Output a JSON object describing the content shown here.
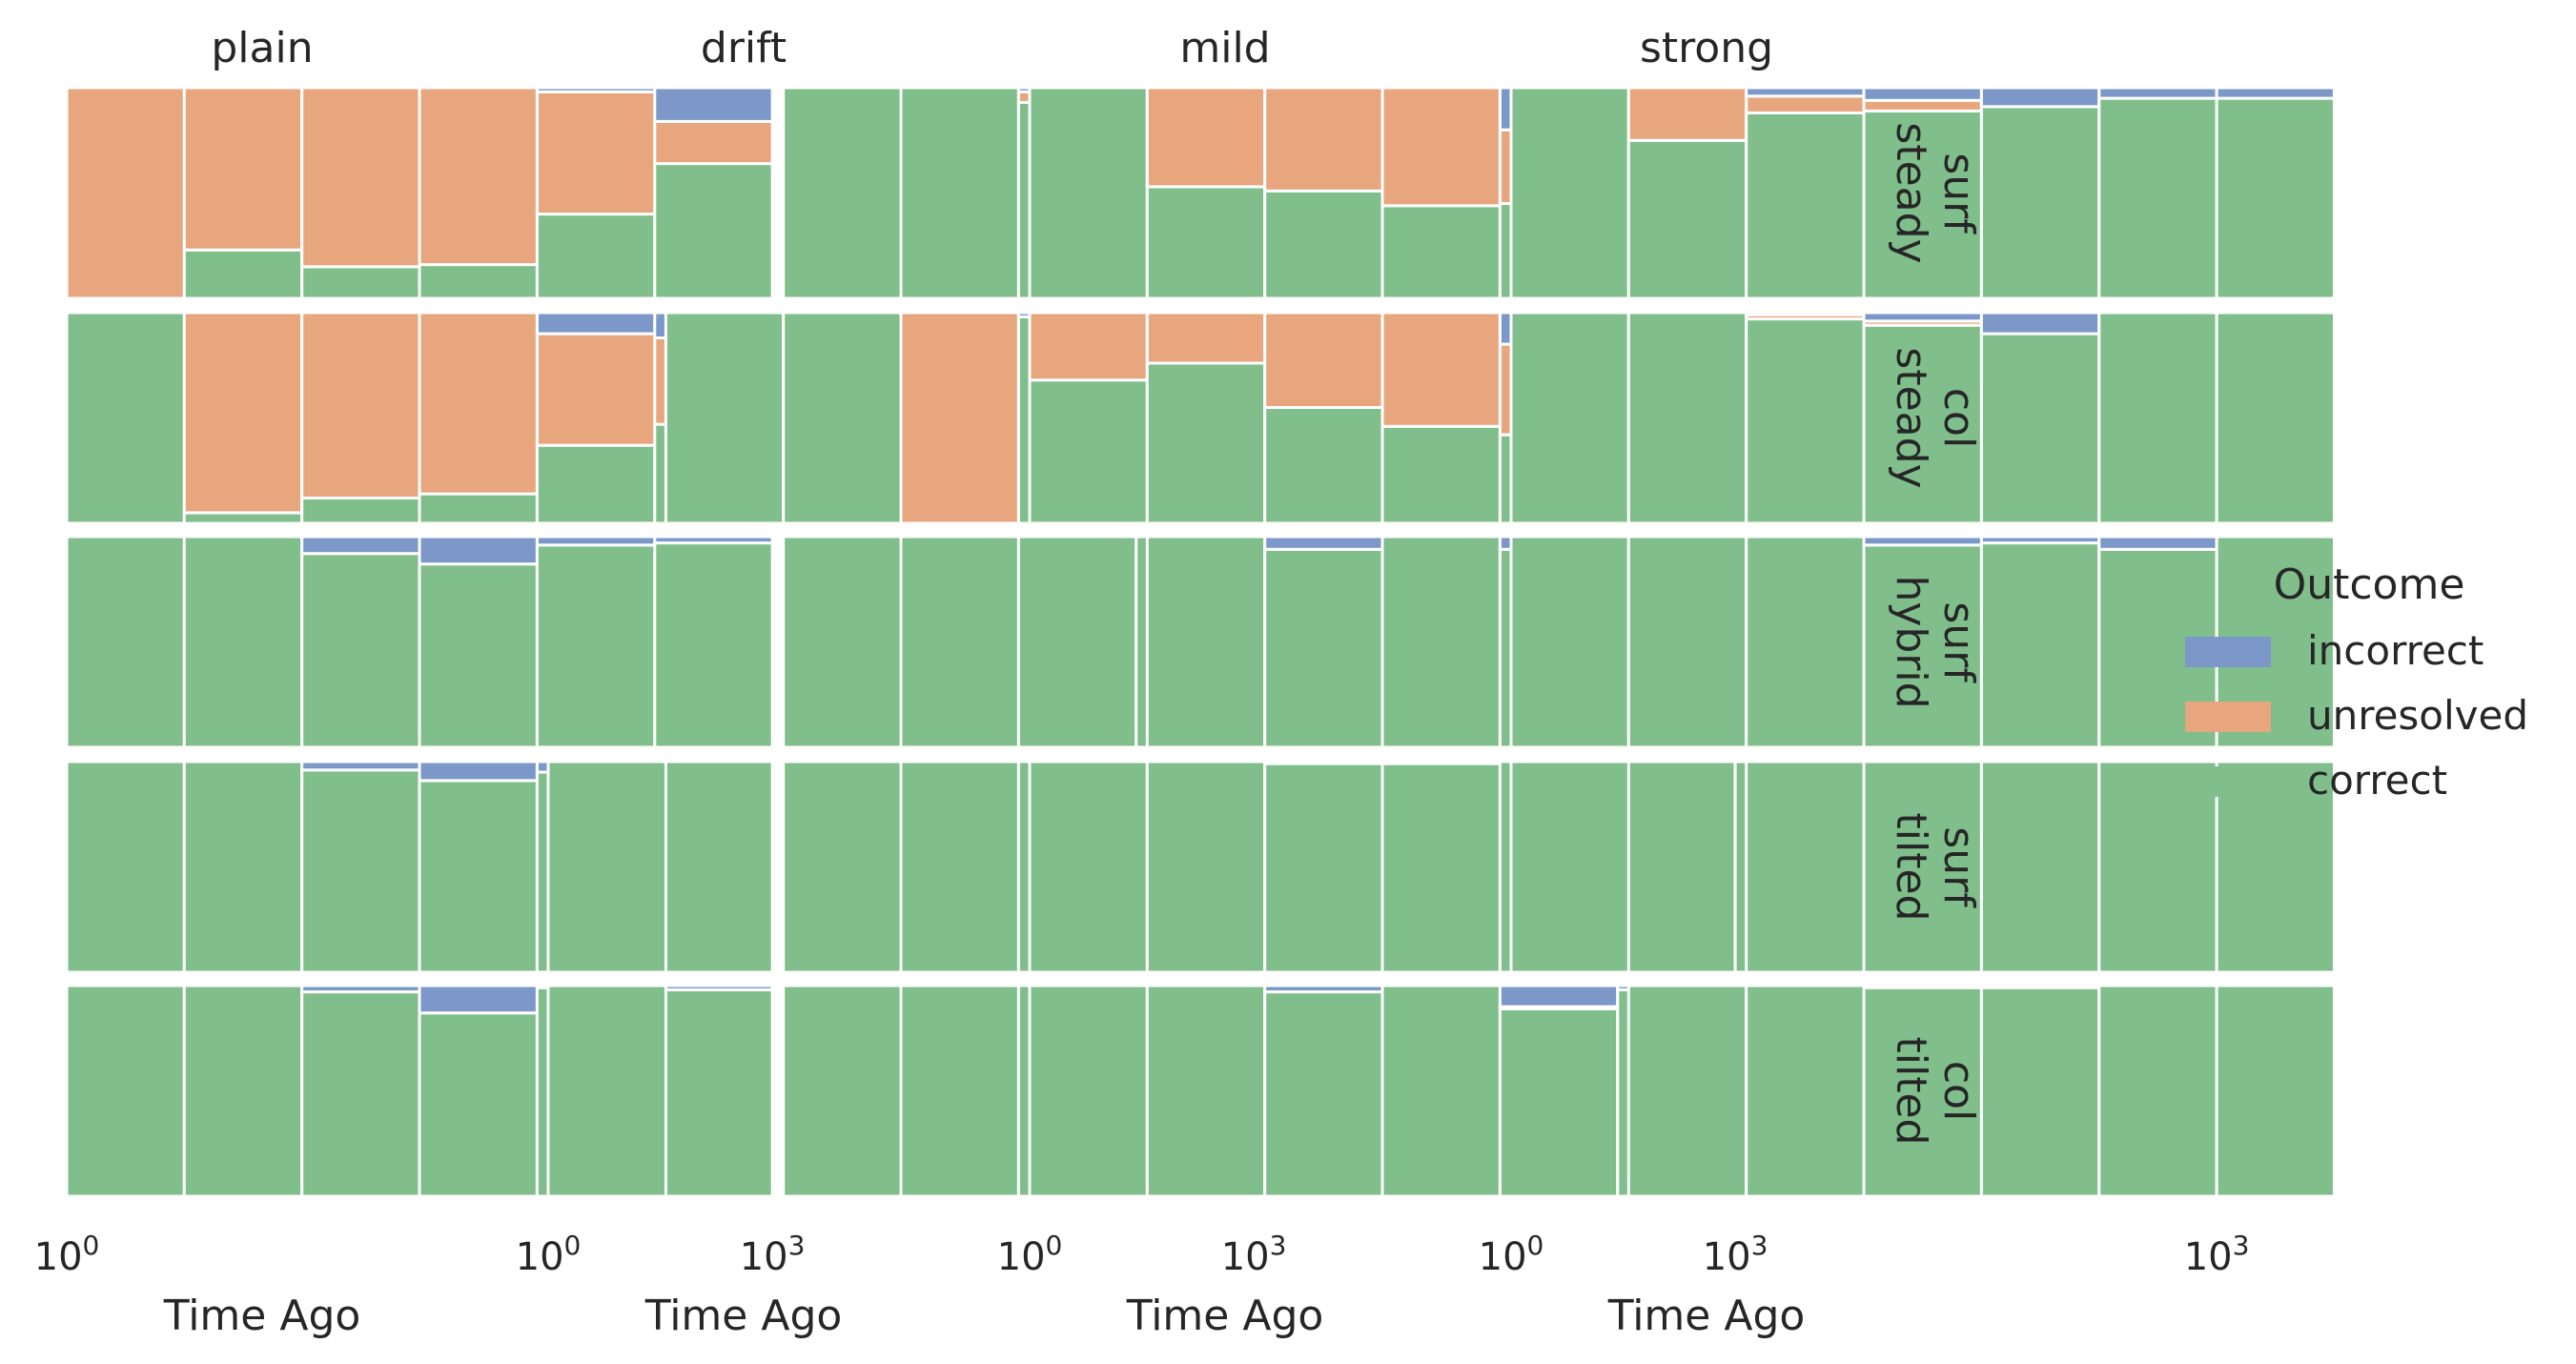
{
  "chart_data": {
    "type": "bar",
    "subtype": "stacked-histogram-facet-grid",
    "x_scale": "log10",
    "x_ticks": [
      {
        "value": 1,
        "label_base": "10",
        "label_exp": "0"
      },
      {
        "value": 1000,
        "label_base": "10",
        "label_exp": "3"
      }
    ],
    "bin_edges_log10": [
      0,
      0.5,
      1,
      1.5,
      2,
      2.5,
      3,
      3.5,
      4
    ],
    "xlabel": "Time Ago",
    "ylim": [
      0,
      1
    ],
    "grid": false,
    "legend": {
      "title": "Outcome",
      "placement": "right",
      "entries": [
        "incorrect",
        "unresolved",
        "correct"
      ]
    },
    "colors": {
      "correct": "#80be8c",
      "unresolved": "#e8a67f",
      "incorrect": "#7b98c9"
    },
    "columns": [
      {
        "title": "plain",
        "xlim_log10": [
          0,
          1
        ]
      },
      {
        "title": "drift",
        "xlim_log10": [
          0,
          4
        ]
      },
      {
        "title": "mild",
        "xlim_log10": [
          0,
          1.5
        ]
      },
      {
        "title": "strong",
        "xlim_log10": [
          0,
          1.5
        ]
      }
    ],
    "rows": [
      {
        "label_top": "surf",
        "label_bottom": "steady"
      },
      {
        "label_top": "col",
        "label_bottom": "steady"
      },
      {
        "label_top": "surf",
        "label_bottom": "hybrid"
      },
      {
        "label_top": "surf",
        "label_bottom": "tilted"
      },
      {
        "label_top": "col",
        "label_bottom": "tilted"
      }
    ],
    "panels": [
      [
        {
          "correct": [
            0,
            0.23,
            0.15,
            0.16,
            0.4,
            0.64
          ],
          "unresolved": [
            1,
            0.77,
            0.85,
            0.84,
            0.58,
            0.2
          ],
          "incorrect": [
            0,
            0,
            0,
            0,
            0.02,
            0.16
          ]
        },
        {
          "correct": [
            1,
            0.05,
            0.12,
            0.14,
            0.37,
            0.47
          ],
          "unresolved": [
            0,
            0.95,
            0.88,
            0.86,
            0.53,
            0.41
          ],
          "incorrect": [
            0,
            0,
            0,
            0,
            0.1,
            0.12
          ]
        },
        {
          "correct": [
            1,
            1,
            0.92,
            0.87,
            0.96,
            0.97
          ],
          "unresolved": [
            0,
            0,
            0,
            0,
            0,
            0
          ],
          "incorrect": [
            0,
            0,
            0.08,
            0.13,
            0.04,
            0.03
          ]
        },
        {
          "correct": [
            1,
            1,
            0.96,
            0.91,
            0.95,
            1
          ],
          "unresolved": [
            0,
            0,
            0,
            0,
            0,
            0
          ],
          "incorrect": [
            0,
            0,
            0.04,
            0.09,
            0.05,
            0
          ]
        },
        {
          "correct": [
            1,
            1,
            0.97,
            0.87,
            0.99,
            0.98
          ],
          "unresolved": [
            0,
            0,
            0,
            0,
            0,
            0
          ],
          "incorrect": [
            0,
            0,
            0.03,
            0.13,
            0.01,
            0.02
          ]
        }
      ],
      [
        {
          "correct": [
            null,
            null,
            1,
            1,
            0.93,
            0.98,
            0.99,
            0.98,
            0.98
          ],
          "unresolved": [
            null,
            null,
            0,
            0,
            0.05,
            0.01,
            0,
            0,
            0
          ],
          "incorrect": [
            null,
            null,
            0,
            0,
            0.02,
            0.01,
            0.01,
            0.02,
            0.02
          ]
        },
        {
          "correct": [
            null,
            1,
            1,
            0,
            0.98,
            0.97,
            0.98,
            1,
            1
          ],
          "unresolved": [
            null,
            0,
            0,
            1,
            0,
            0,
            0,
            0,
            0
          ],
          "incorrect": [
            null,
            0,
            0,
            0,
            0.02,
            0.03,
            0.02,
            0,
            0
          ]
        },
        {
          "correct": [
            null,
            null,
            1,
            1,
            1,
            1,
            1,
            0.99,
            1
          ],
          "unresolved": [
            null,
            null,
            0,
            0,
            0,
            0,
            0,
            0,
            0
          ],
          "incorrect": [
            null,
            null,
            0,
            0,
            0,
            0,
            0,
            0.01,
            0
          ]
        },
        {
          "correct": [
            1,
            null,
            1,
            1,
            1,
            1,
            1,
            0.96,
            0.98
          ],
          "unresolved": [
            0,
            null,
            0,
            0,
            0,
            0,
            0,
            0,
            0
          ],
          "incorrect": [
            0,
            null,
            0,
            0,
            0,
            0,
            0,
            0.04,
            0.02
          ]
        },
        {
          "correct": [
            1,
            null,
            1,
            1,
            1,
            1,
            1,
            0.98,
            0.99
          ],
          "unresolved": [
            0,
            null,
            0,
            0,
            0,
            0,
            0,
            0,
            0
          ],
          "incorrect": [
            0,
            null,
            0,
            0,
            0,
            0,
            0,
            0.02,
            0.01
          ]
        }
      ],
      [
        {
          "correct": [
            1,
            0.53,
            0.51,
            0.44,
            0.45,
            0.51,
            0.93
          ],
          "unresolved": [
            0,
            0.47,
            0.49,
            0.56,
            0.35,
            0.25,
            0.04
          ],
          "incorrect": [
            0,
            0,
            0,
            0,
            0.2,
            0.24,
            0.03
          ]
        },
        {
          "correct": [
            0.68,
            0.76,
            0.55,
            0.46,
            0.42,
            0.66,
            0.97
          ],
          "unresolved": [
            0.32,
            0.24,
            0.45,
            0.54,
            0.43,
            0.19,
            0
          ],
          "incorrect": [
            0,
            0,
            0,
            0,
            0.15,
            0.15,
            0.03
          ]
        },
        {
          "correct": [
            null,
            1,
            0.94,
            1,
            0.94,
            0.97,
            1
          ],
          "unresolved": [
            null,
            0,
            0,
            0,
            0,
            0,
            0
          ],
          "incorrect": [
            null,
            0,
            0.06,
            0,
            0.06,
            0.03,
            0
          ]
        },
        {
          "correct": [
            1,
            1,
            0.99,
            0.99,
            1,
            1,
            1
          ],
          "unresolved": [
            0,
            0,
            0,
            0,
            0,
            0,
            0
          ],
          "incorrect": [
            0,
            0,
            0,
            0,
            0,
            0,
            0
          ]
        },
        {
          "correct": [
            1,
            1,
            0.97,
            1,
            0.89,
            0.98,
            1
          ],
          "unresolved": [
            0,
            0,
            0,
            0,
            0.01,
            0,
            0
          ],
          "incorrect": [
            0,
            0,
            0.03,
            0,
            0.1,
            0.02,
            0
          ]
        }
      ],
      [
        {
          "correct": [
            1,
            0.75,
            0.88,
            0.89,
            0.91,
            0.95,
            0.95
          ],
          "unresolved": [
            0,
            0.25,
            0.08,
            0.05,
            0,
            0,
            0
          ],
          "incorrect": [
            0,
            0,
            0.04,
            0.06,
            0.09,
            0.05,
            0.05
          ]
        },
        {
          "correct": [
            1,
            1,
            0.97,
            0.94,
            0.9,
            1,
            1
          ],
          "unresolved": [
            0,
            0,
            0.02,
            0.02,
            0,
            0,
            0
          ],
          "incorrect": [
            0,
            0,
            0.01,
            0.04,
            0.1,
            0,
            0
          ]
        },
        {
          "correct": [
            1,
            1,
            1,
            0.96,
            0.97,
            0.94,
            1
          ],
          "unresolved": [
            0,
            0,
            0,
            0,
            0,
            0,
            0
          ],
          "incorrect": [
            0,
            0,
            0,
            0.04,
            0.03,
            0.06,
            0
          ]
        },
        {
          "correct": [
            1,
            null,
            1,
            1,
            1,
            1,
            1
          ],
          "unresolved": [
            0,
            null,
            0,
            0,
            0,
            0,
            0
          ],
          "incorrect": [
            0,
            null,
            0,
            0,
            0,
            0,
            0
          ]
        },
        {
          "correct": [
            null,
            1,
            1,
            0.99,
            0.99,
            1,
            1
          ],
          "unresolved": [
            null,
            0,
            0,
            0,
            0,
            0,
            0
          ],
          "incorrect": [
            null,
            0,
            0,
            0.01,
            0.01,
            0,
            0
          ]
        }
      ]
    ]
  }
}
